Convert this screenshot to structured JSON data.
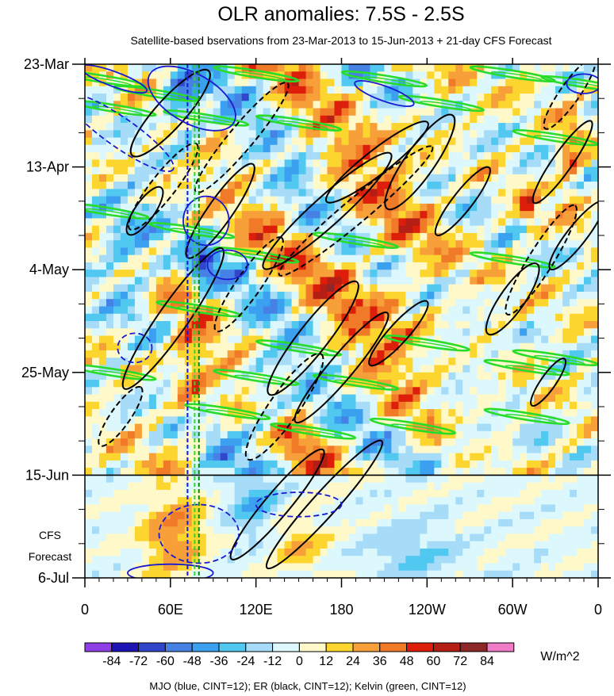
{
  "chart_data": {
    "type": "heatmap",
    "title": "OLR anomalies: 7.5S - 2.5S",
    "subtitle": "Satellite-based bservations from 23-Mar-2013 to 15-Jun-2013 + 21-day CFS Forecast",
    "x_ticks": [
      "0",
      "60E",
      "120E",
      "180",
      "120W",
      "60W",
      "0"
    ],
    "x_tick_lon": [
      0,
      60,
      120,
      180,
      240,
      300,
      360
    ],
    "xlim": [
      0,
      360
    ],
    "y_ticks": [
      "23-Mar",
      "13-Apr",
      "4-May",
      "25-May",
      "15-Jun",
      "6-Jul"
    ],
    "y_tick_days": [
      0,
      21,
      42,
      63,
      84,
      105
    ],
    "ylim_days": [
      0,
      105
    ],
    "observation_end_day": 84,
    "forecast_label": [
      "CFS",
      "Forecast"
    ],
    "colorbar": {
      "levels": [
        -84,
        -72,
        -60,
        -48,
        -36,
        -24,
        -12,
        0,
        12,
        24,
        36,
        48,
        60,
        72,
        84
      ],
      "labels": [
        "-84",
        "-72",
        "-60",
        "-48",
        "-36",
        "-24",
        "-12",
        "0",
        "12",
        "24",
        "36",
        "48",
        "60",
        "72",
        "84"
      ],
      "colors": [
        "#8e3fe6",
        "#1e14b4",
        "#3246cc",
        "#4682e6",
        "#3ca0f0",
        "#50c8f0",
        "#a6dcf8",
        "#dcf8fc",
        "#fff8c8",
        "#fcd62e",
        "#f7a03a",
        "#f07a28",
        "#dc1e0a",
        "#b41e14",
        "#8c2828",
        "#f07cc8"
      ],
      "units": "W/m^2"
    },
    "contour_legend": "MJO (blue, CINT=12); ER (black, CINT=12); Kelvin (green, CINT=12)",
    "series": [
      {
        "name": "MJO",
        "color": "#1a1ad2"
      },
      {
        "name": "ER",
        "color": "#000000"
      },
      {
        "name": "Kelvin",
        "color": "#2adc2a"
      }
    ],
    "reference_longitudes": [
      {
        "lon": 72,
        "color": "#1a1ad2"
      },
      {
        "lon": 77,
        "color": "#2adc2a"
      },
      {
        "lon": 80,
        "color": "#0a8a0a"
      }
    ]
  }
}
